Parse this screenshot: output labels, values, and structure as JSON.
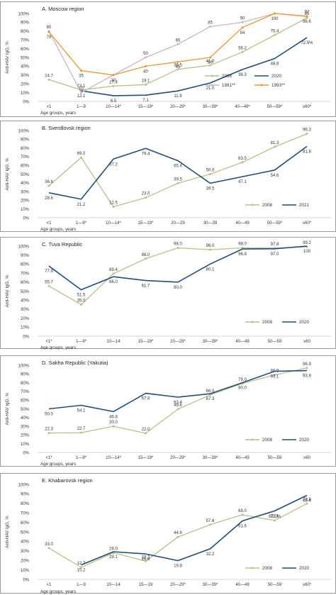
{
  "chart_data": [
    {
      "type": "line",
      "title": "A. Moscow region",
      "ylabel": "Anti-HAV IgG, %",
      "xlabel": "Age groups, years",
      "ylim": [
        0,
        100
      ],
      "yticks": [
        "0%",
        "10%",
        "20%",
        "30%",
        "40%",
        "50%",
        "60%",
        "70%",
        "80%",
        "90%",
        "100%"
      ],
      "categories": [
        "<1",
        "1—9",
        "10—14*",
        "15—19*",
        "20—29*",
        "30—39*",
        "40—49*",
        "50—59*",
        "≥60*"
      ],
      "legend_position": "bottom-right",
      "series": [
        {
          "name": "2008",
          "color": "#b7c08a",
          "values": [
            24.7,
            13.1,
            17.4,
            19.1,
            36.5,
            41.0,
            56.2,
            75.4,
            95
          ],
          "labels": [
            "24.7",
            "13.1",
            "17.4",
            "19.1",
            "36.5",
            "41.0",
            "56.2",
            "75.4",
            "95"
          ]
        },
        {
          "name": "2020",
          "color": "#1f4e79",
          "values": [
            null,
            12.1,
            6.5,
            7.1,
            11.9,
            21.0,
            36.3,
            48.8,
            72.5
          ],
          "labels": [
            "",
            "12.1",
            "6.5",
            "7.1",
            "11.9",
            "21.0",
            "36.3",
            "48.8",
            "72.5%"
          ]
        },
        {
          "name": "1981**",
          "color": "#c9b3cf",
          "values": [
            80,
            10,
            30,
            50,
            65,
            85,
            90,
            100,
            97
          ],
          "labels": [
            "80",
            "10",
            "",
            "50",
            "65",
            "85",
            "90",
            "",
            "97"
          ]
        },
        {
          "name": "1993**",
          "color": "#e39a2b",
          "values": [
            79,
            35,
            30,
            40,
            45,
            50,
            84,
            100,
            96.6
          ],
          "labels": [
            "79",
            "35",
            "30",
            "40",
            "45",
            "50",
            "84",
            "100",
            "96.6"
          ]
        }
      ]
    },
    {
      "type": "line",
      "title": "B. Sverdlovsk region",
      "ylabel": "Anti-HAV IgG, %",
      "xlabel": "Age groups, years",
      "ylim": [
        0,
        100
      ],
      "yticks": [
        "0%",
        "10%",
        "20%",
        "30%",
        "40%",
        "50%",
        "60%",
        "70%",
        "80%",
        "90%",
        "100%"
      ],
      "categories": [
        "<1",
        "1—9*",
        "10—14*",
        "15—19*",
        "20—29",
        "30—39",
        "40—49",
        "50—59*",
        "≥60*"
      ],
      "legend_position": "bottom-right",
      "series": [
        {
          "name": "2008",
          "color": "#b7c08a",
          "values": [
            36.6,
            69.0,
            12.5,
            23.0,
            39.5,
            50.0,
            63.5,
            81.3,
            96.3
          ],
          "labels": [
            "36.6",
            "69.0",
            "12.5",
            "23.0",
            "39.5",
            "50.0",
            "63.5",
            "81.3",
            "96.3"
          ]
        },
        {
          "name": "2021",
          "color": "#1f4e79",
          "values": [
            28.6,
            21.2,
            67.2,
            79.4,
            65.4,
            39.5,
            47.1,
            54.6,
            81.8
          ],
          "labels": [
            "28.6",
            "21.2",
            "67.2",
            "79.4",
            "65.4",
            "39.5",
            "47.1",
            "54.6",
            "81.8"
          ]
        }
      ]
    },
    {
      "type": "line",
      "title": "C. Tuva Republic",
      "ylabel": "Anti-HAV IgG, %",
      "xlabel": "Age groups, years",
      "ylim": [
        0,
        100
      ],
      "yticks": [
        "0%",
        "10%",
        "20%",
        "30%",
        "40%",
        "50%",
        "60%",
        "70%",
        "80%",
        "90%",
        "100%"
      ],
      "categories": [
        "<1*",
        "1—9*",
        "10—14",
        "15—19*",
        "20—29*",
        "30—39*",
        "40—49",
        "50—59",
        "≥60"
      ],
      "legend_position": "bottom-right",
      "series": [
        {
          "name": "2008",
          "color": "#b7c08a",
          "values": [
            55.7,
            35.0,
            69.4,
            86.0,
            98.0,
            96.0,
            98.0,
            97.8,
            99.2
          ],
          "labels": [
            "55.7",
            "35.0",
            "69.4",
            "86.0",
            "98.0",
            "96.0",
            "98.0",
            "97.8",
            "99.2"
          ]
        },
        {
          "name": "2020",
          "color": "#1f4e79",
          "values": [
            77.9,
            51.5,
            66.0,
            61.7,
            60.0,
            80.1,
            96.8,
            97.0,
            100
          ],
          "labels": [
            "77.9",
            "51.5",
            "66.0",
            "61.7",
            "60.0",
            "80.1",
            "96.8",
            "97.0",
            "100"
          ]
        }
      ]
    },
    {
      "type": "line",
      "title": "D. Sakha Republic (Yakutia)",
      "ylabel": "Anti-HAV IgG, %",
      "xlabel": "Age groups, years",
      "ylim": [
        0,
        100
      ],
      "yticks": [
        "0%",
        "10%",
        "20%",
        "30%",
        "40%",
        "50%",
        "60%",
        "70%",
        "80%",
        "90%",
        "100%"
      ],
      "categories": [
        "<1*",
        "1—9*",
        "10—14*",
        "15—19*",
        "20—29*",
        "30—39*",
        "40—49",
        "50—59",
        "≥60"
      ],
      "legend_position": "bottom-right",
      "series": [
        {
          "name": "2008",
          "color": "#b7c08a",
          "values": [
            22.3,
            22.7,
            30.0,
            22.0,
            49.6,
            66.0,
            79.0,
            88.9,
            96.9
          ],
          "labels": [
            "22.3",
            "22.7",
            "30.0",
            "22.0",
            "49.6",
            "66.0",
            "79.0",
            "88.9",
            "96.9"
          ]
        },
        {
          "name": "2020",
          "color": "#1f4e79",
          "values": [
            50.0,
            54.1,
            46.8,
            67.8,
            63.4,
            67.3,
            80.0,
            93.1,
            93.8
          ],
          "labels": [
            "50.0",
            "54.1",
            "46.8",
            "67.8",
            "63.4",
            "67.3",
            "80.0",
            "93.1",
            "93.8"
          ]
        }
      ]
    },
    {
      "type": "line",
      "title": "E. Khabarovsk region",
      "ylabel": "Anti-HAV IgG, %",
      "xlabel": "Age groups, years",
      "ylim": [
        0,
        100
      ],
      "yticks": [
        "0%",
        "10%",
        "20%",
        "30%",
        "40%",
        "50%",
        "60%",
        "70%",
        "80%",
        "90%",
        "100%"
      ],
      "categories": [
        "<1",
        "1—9",
        "10—14",
        "15—19",
        "20—29*",
        "30—39*",
        "40—49",
        "50—59",
        "≥60*"
      ],
      "legend_position": "bottom-right",
      "series": [
        {
          "name": "2008",
          "color": "#b7c08a",
          "values": [
            33.0,
            12.7,
            28.0,
            19.2,
            44.6,
            57.6,
            68.0,
            62.0,
            79.8
          ],
          "labels": [
            "33.0",
            "12.7",
            "28.0",
            "19.2",
            "44.6",
            "57.6",
            "68.0",
            "62.0%",
            "79.8"
          ]
        },
        {
          "name": "2020",
          "color": "#1f4e79",
          "values": [
            null,
            15.2,
            29.1,
            26.8,
            19.8,
            32.2,
            61.6,
            72.1,
            88.4
          ],
          "labels": [
            "",
            "15.2",
            "29.1",
            "26.8",
            "19.8",
            "32.2",
            "61.6",
            "72.1",
            "88.4"
          ]
        }
      ]
    }
  ]
}
